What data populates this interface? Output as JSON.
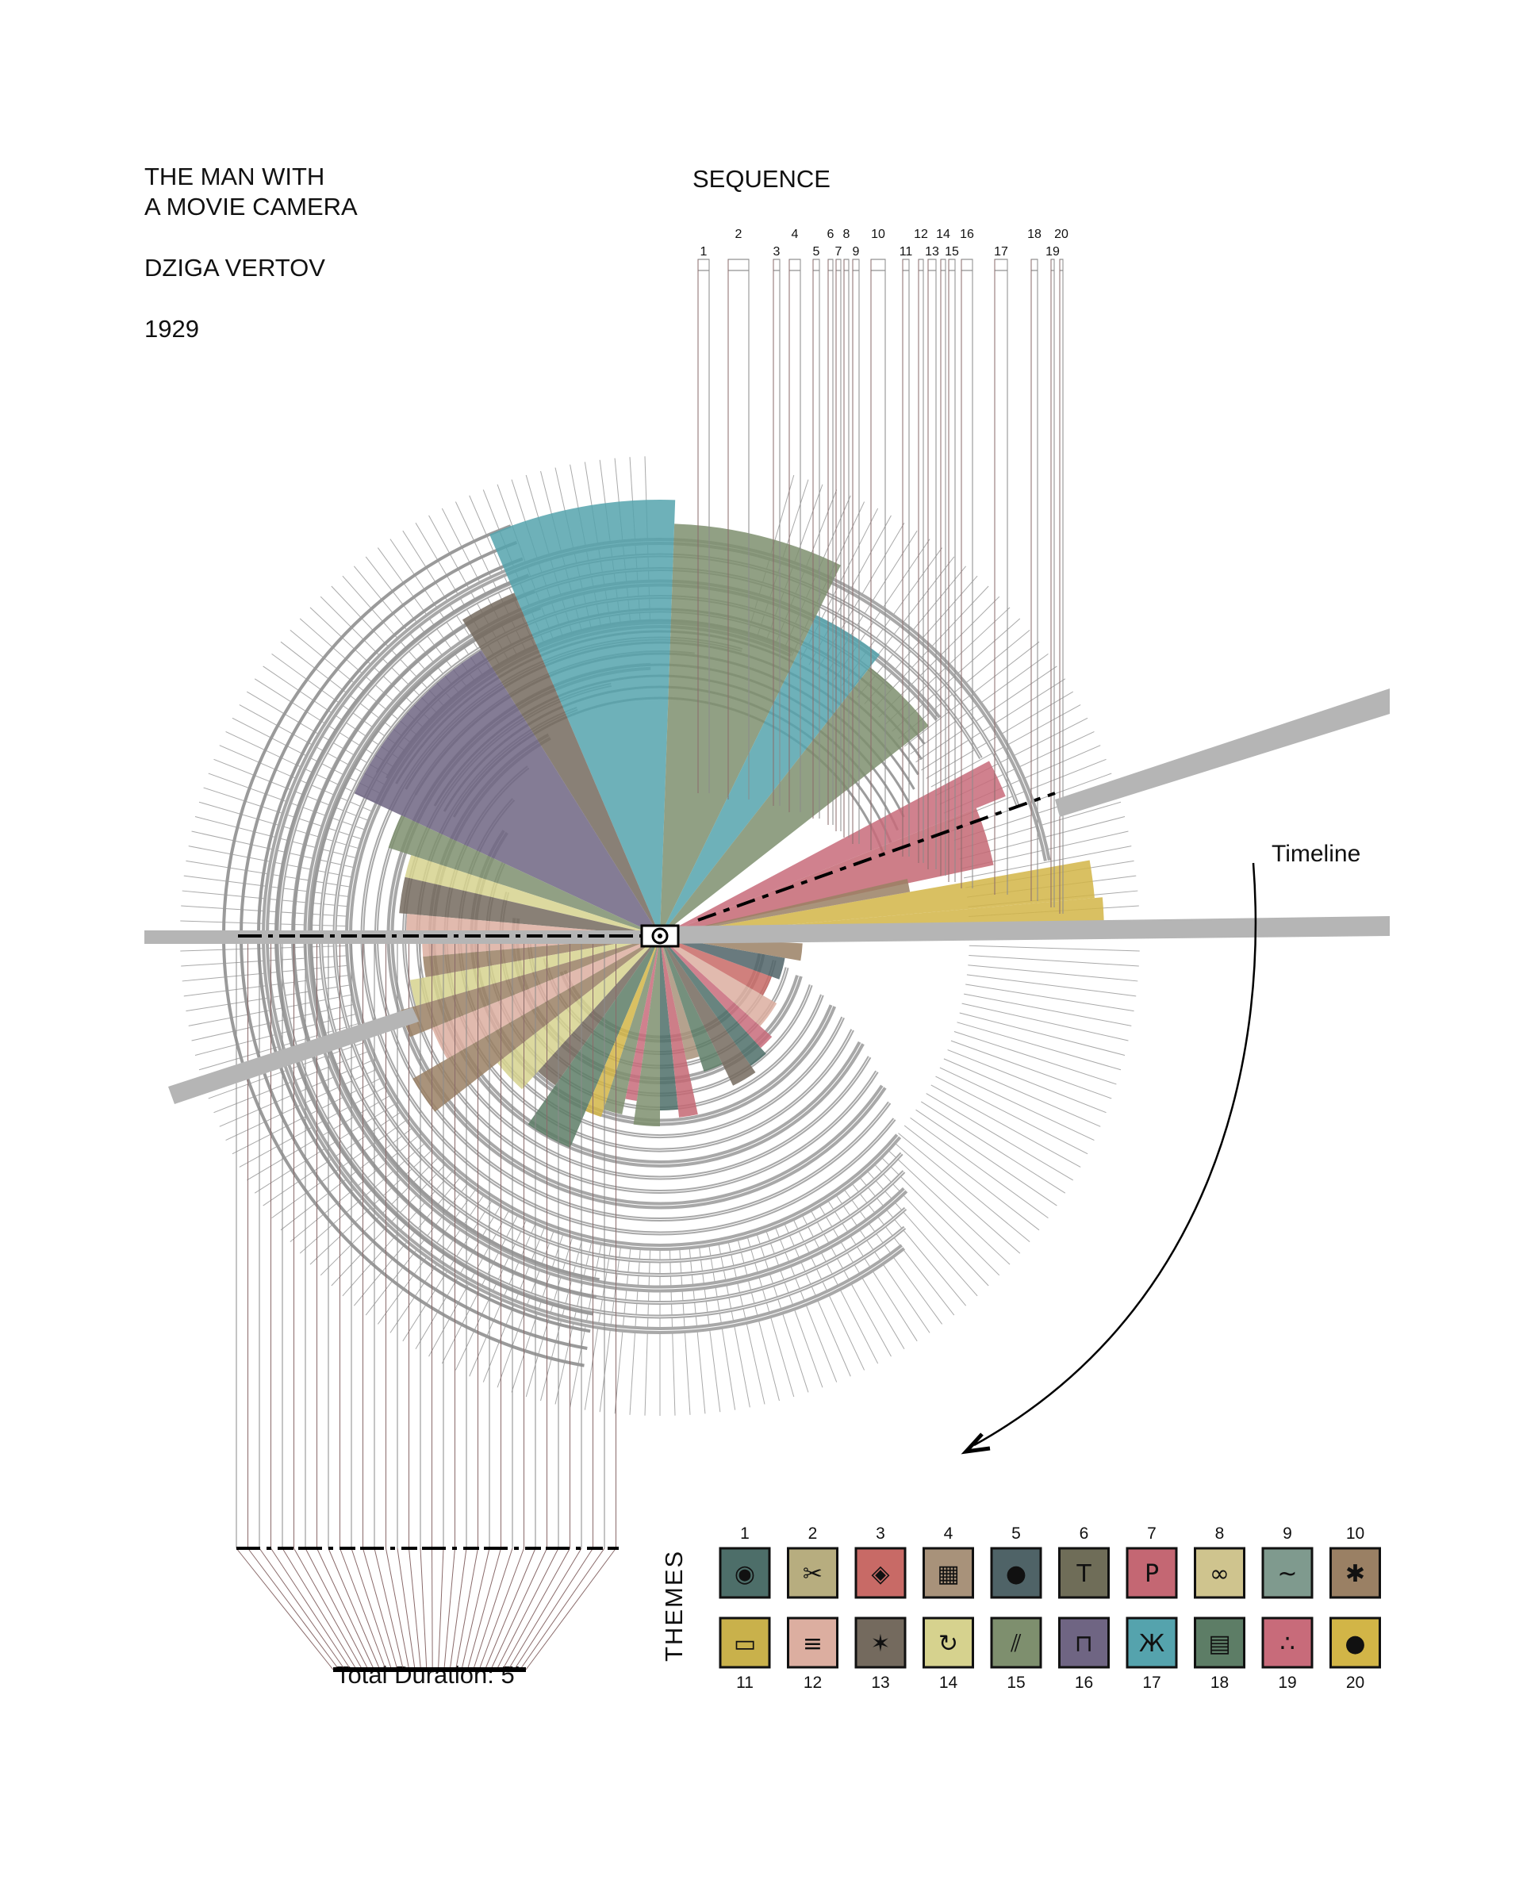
{
  "film": {
    "title_line1": "THE MAN WITH",
    "title_line2": "A MOVIE CAMERA",
    "director": "DZIGA VERTOV",
    "year": "1929"
  },
  "sequence": {
    "heading": "SEQUENCE",
    "numbers": [
      "1",
      "2",
      "3",
      "4",
      "5",
      "6",
      "7",
      "8",
      "9",
      "10",
      "11",
      "12",
      "13",
      "14",
      "15",
      "16",
      "17",
      "18",
      "19",
      "20"
    ]
  },
  "timeline_label": "Timeline",
  "total_duration": "Total Duration: 5’",
  "themes": {
    "heading": "THEMES",
    "items": [
      {
        "num": "1",
        "color": "#4d6e69",
        "icon": "camera-icon"
      },
      {
        "num": "2",
        "color": "#b7ad7f",
        "icon": "scissors-icon"
      },
      {
        "num": "3",
        "color": "#c86a66",
        "icon": "eye-icon"
      },
      {
        "num": "4",
        "color": "#a8927a",
        "icon": "film-strip-icon"
      },
      {
        "num": "5",
        "color": "#4f6367",
        "icon": "drop-icon"
      },
      {
        "num": "6",
        "color": "#6f6d58",
        "icon": "hammer-icon"
      },
      {
        "num": "7",
        "color": "#c46773",
        "icon": "flag-icon"
      },
      {
        "num": "8",
        "color": "#cfc48e",
        "icon": "shoes-icon"
      },
      {
        "num": "9",
        "color": "#7f9a8e",
        "icon": "wave-icon"
      },
      {
        "num": "10",
        "color": "#9a8064",
        "icon": "wheel-icon"
      },
      {
        "num": "11",
        "color": "#c9b14b",
        "icon": "film-frame-icon"
      },
      {
        "num": "12",
        "color": "#dcaea0",
        "icon": "sliders-icon"
      },
      {
        "num": "13",
        "color": "#746a5e",
        "icon": "grass-icon"
      },
      {
        "num": "14",
        "color": "#d6d28e",
        "icon": "cycle-icon"
      },
      {
        "num": "15",
        "color": "#7e8f6e",
        "icon": "stripes-icon"
      },
      {
        "num": "16",
        "color": "#6f6583",
        "icon": "pulse-icon"
      },
      {
        "num": "17",
        "color": "#55a3ad",
        "icon": "figure-icon"
      },
      {
        "num": "18",
        "color": "#5d7d66",
        "icon": "layers-icon"
      },
      {
        "num": "19",
        "color": "#c86b7a",
        "icon": "dots-icon"
      },
      {
        "num": "20",
        "color": "#d2b547",
        "icon": "circle-icon"
      }
    ]
  }
}
